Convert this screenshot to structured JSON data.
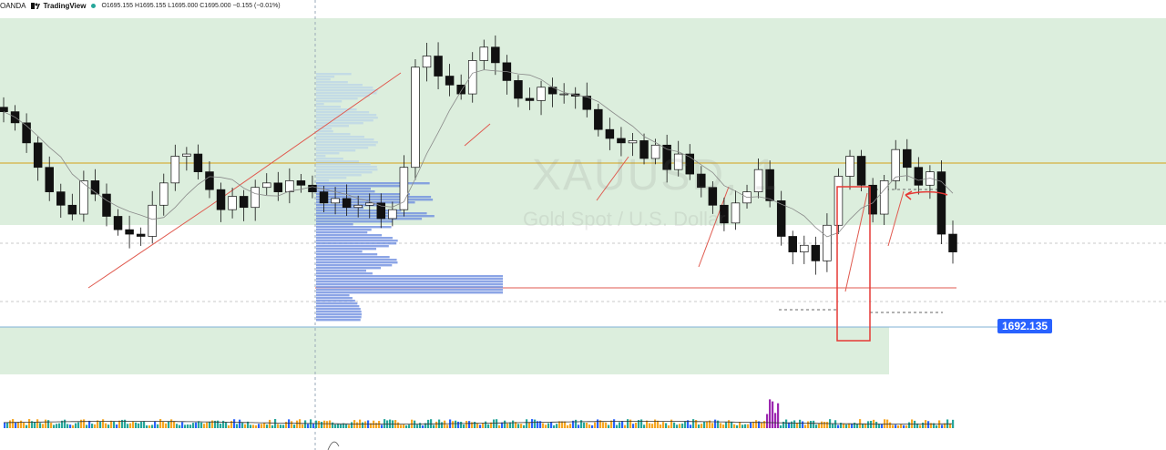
{
  "header": {
    "broker": "OANDA",
    "app_name": "TradingView",
    "ohlc": "O1695.155 H1695.155 L1695.000 C1695.000 −0.155 (−0.01%)",
    "status_color": "#26a69a"
  },
  "watermark": {
    "symbol": "XAUUSD, 1",
    "description": "Gold Spot / U.S. Dollar"
  },
  "price_tag": {
    "label": "1692.135",
    "color": "#2962ff"
  },
  "chart_data": {
    "type": "candlestick",
    "ylim": [
      1691.0,
      1707.0
    ],
    "current_price": 1692.135,
    "levels": [
      {
        "price": 1702.6,
        "color": "#d4a017"
      },
      {
        "price": 1696.9,
        "color": "#e05a4f"
      },
      {
        "price": 1692.1,
        "color": "#2962ff"
      }
    ],
    "candles_close": [
      1702.8,
      1702.3,
      1701.4,
      1700.3,
      1699.2,
      1698.6,
      1698.2,
      1699.7,
      1699.1,
      1698.1,
      1697.5,
      1697.3,
      1697.2,
      1698.6,
      1699.6,
      1700.8,
      1700.9,
      1700.1,
      1699.3,
      1698.4,
      1699.0,
      1698.5,
      1699.4,
      1699.6,
      1699.2,
      1699.7,
      1699.5,
      1699.2,
      1698.7,
      1698.9,
      1698.5,
      1698.6,
      1698.7,
      1698.0,
      1698.4,
      1700.3,
      1704.8,
      1705.3,
      1704.4,
      1704.0,
      1703.6,
      1705.1,
      1705.7,
      1705.0,
      1704.2,
      1703.4,
      1703.3,
      1703.9,
      1703.6,
      1703.6,
      1703.5,
      1702.9,
      1702.0,
      1701.6,
      1701.4,
      1701.5,
      1700.7,
      1701.3,
      1700.2,
      1700.9,
      1700.0,
      1699.4,
      1698.6,
      1697.8,
      1698.7,
      1699.2,
      1700.2,
      1698.8,
      1697.2,
      1696.5,
      1696.8,
      1696.1,
      1697.7,
      1699.9,
      1700.8,
      1699.5,
      1698.2,
      1699.7,
      1701.1,
      1700.3,
      1699.5,
      1700.1,
      1697.3,
      1696.5
    ],
    "volume_ma_visible": true,
    "volume_colors": {
      "up": "#f5a623",
      "down": "#26a69a",
      "spike": "#9c27b0",
      "blue": "#2962ff"
    }
  }
}
